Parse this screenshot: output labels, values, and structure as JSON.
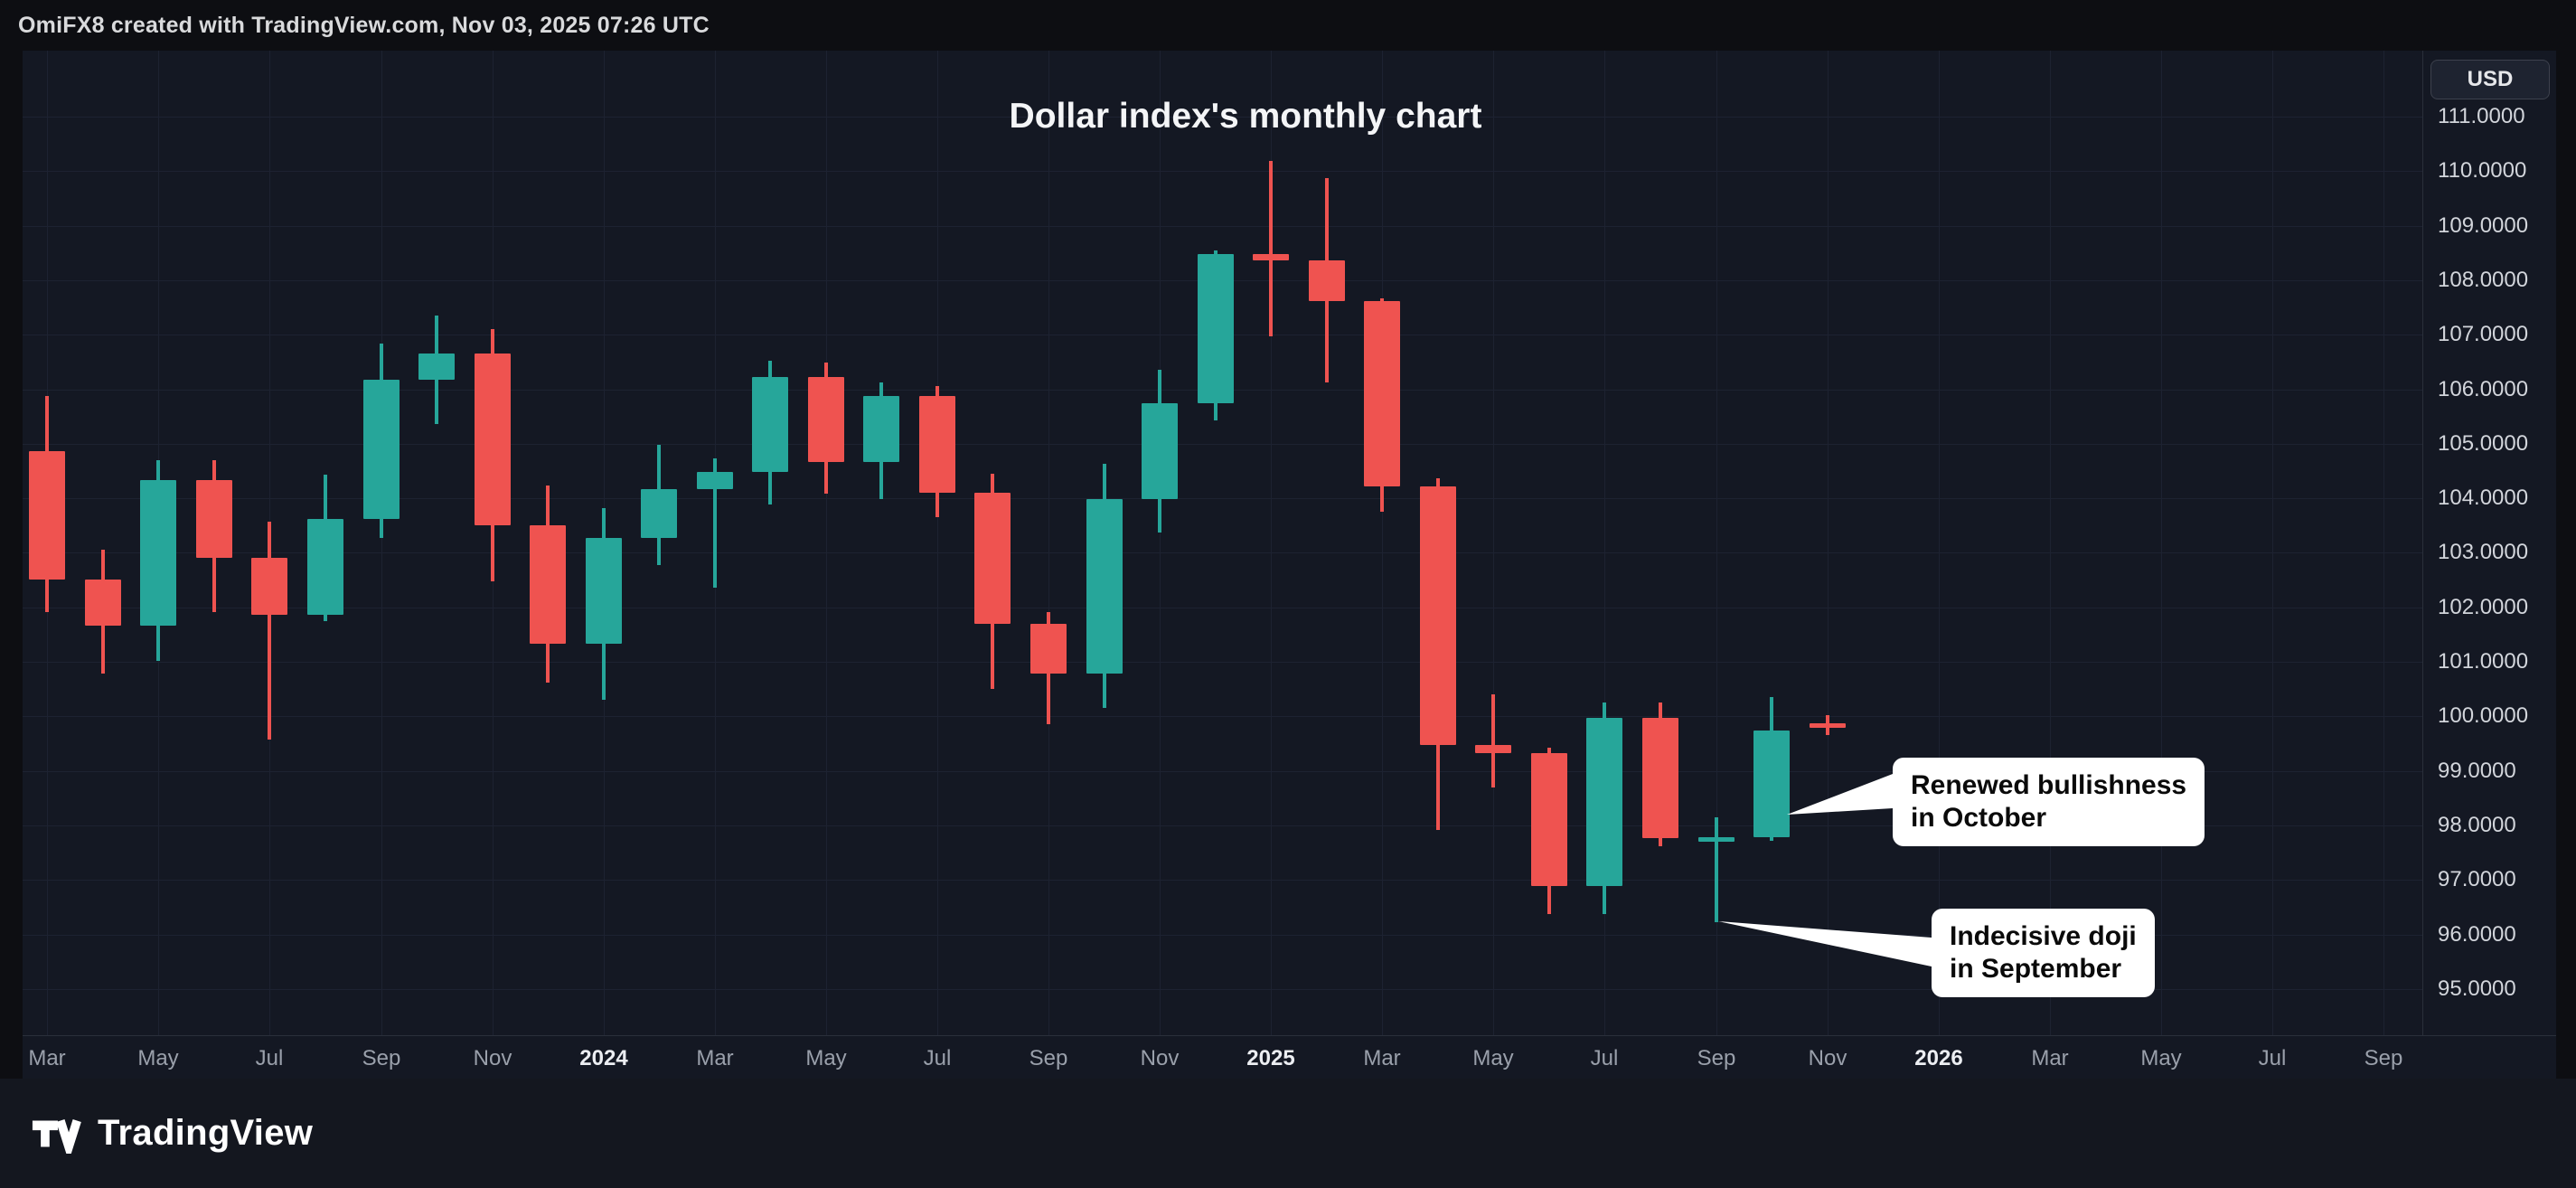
{
  "header": {
    "credit": "OmiFX8 created with TradingView.com, Nov 03, 2025 07:26 UTC"
  },
  "chart": {
    "title": "Dollar index's monthly chart",
    "currency_button": "USD"
  },
  "annotations": [
    {
      "line1": "Renewed bullishness",
      "line2": "in October"
    },
    {
      "line1": "Indecisive doji",
      "line2": "in September"
    }
  ],
  "footer": {
    "brand": "TradingView"
  },
  "chart_data": {
    "type": "candlestick",
    "title": "Dollar index's monthly chart",
    "currency": "USD",
    "timeframe": "monthly",
    "grid": true,
    "y_range": [
      94.15,
      112.2
    ],
    "colors": {
      "up": "#26a69a",
      "down": "#ef5350"
    },
    "y_ticks": [
      "111.0000",
      "110.0000",
      "109.0000",
      "108.0000",
      "107.0000",
      "106.0000",
      "105.0000",
      "104.0000",
      "103.0000",
      "102.0000",
      "101.0000",
      "100.0000",
      "99.0000",
      "98.0000",
      "97.0000",
      "96.0000",
      "95.0000"
    ],
    "x_ticks": [
      {
        "i": 0,
        "label": "Mar"
      },
      {
        "i": 2,
        "label": "May"
      },
      {
        "i": 4,
        "label": "Jul"
      },
      {
        "i": 6,
        "label": "Sep"
      },
      {
        "i": 8,
        "label": "Nov"
      },
      {
        "i": 10,
        "label": "2024",
        "bold": true
      },
      {
        "i": 12,
        "label": "Mar"
      },
      {
        "i": 14,
        "label": "May"
      },
      {
        "i": 16,
        "label": "Jul"
      },
      {
        "i": 18,
        "label": "Sep"
      },
      {
        "i": 20,
        "label": "Nov"
      },
      {
        "i": 22,
        "label": "2025",
        "bold": true
      },
      {
        "i": 24,
        "label": "Mar"
      },
      {
        "i": 26,
        "label": "May"
      },
      {
        "i": 28,
        "label": "Jul"
      },
      {
        "i": 30,
        "label": "Sep"
      },
      {
        "i": 32,
        "label": "Nov"
      },
      {
        "i": 34,
        "label": "2026",
        "bold": true
      },
      {
        "i": 36,
        "label": "Mar"
      },
      {
        "i": 38,
        "label": "May"
      },
      {
        "i": 40,
        "label": "Jul"
      },
      {
        "i": 42,
        "label": "Sep"
      }
    ],
    "candles": [
      {
        "t": "Mar 2023",
        "o": 104.87,
        "h": 105.88,
        "l": 101.92,
        "c": 102.51
      },
      {
        "t": "Apr 2023",
        "o": 102.51,
        "h": 103.06,
        "l": 100.79,
        "c": 101.66
      },
      {
        "t": "May 2023",
        "o": 101.66,
        "h": 104.7,
        "l": 101.01,
        "c": 104.33
      },
      {
        "t": "Jun 2023",
        "o": 104.33,
        "h": 104.7,
        "l": 101.92,
        "c": 102.91
      },
      {
        "t": "Jul 2023",
        "o": 102.91,
        "h": 103.57,
        "l": 99.58,
        "c": 101.86
      },
      {
        "t": "Aug 2023",
        "o": 101.86,
        "h": 104.44,
        "l": 101.74,
        "c": 103.62
      },
      {
        "t": "Sep 2023",
        "o": 103.62,
        "h": 106.84,
        "l": 103.27,
        "c": 106.17
      },
      {
        "t": "Oct 2023",
        "o": 106.17,
        "h": 107.35,
        "l": 105.36,
        "c": 106.66
      },
      {
        "t": "Nov 2023",
        "o": 106.66,
        "h": 107.11,
        "l": 102.47,
        "c": 103.5
      },
      {
        "t": "Dec 2023",
        "o": 103.5,
        "h": 104.23,
        "l": 100.62,
        "c": 101.33
      },
      {
        "t": "Jan 2024",
        "o": 101.33,
        "h": 103.82,
        "l": 100.31,
        "c": 103.27
      },
      {
        "t": "Feb 2024",
        "o": 103.27,
        "h": 104.98,
        "l": 102.78,
        "c": 104.16
      },
      {
        "t": "Mar 2024",
        "o": 104.16,
        "h": 104.73,
        "l": 102.36,
        "c": 104.49
      },
      {
        "t": "Apr 2024",
        "o": 104.49,
        "h": 106.52,
        "l": 103.89,
        "c": 106.22
      },
      {
        "t": "May 2024",
        "o": 106.22,
        "h": 106.49,
        "l": 104.08,
        "c": 104.67
      },
      {
        "t": "Jun 2024",
        "o": 104.67,
        "h": 106.13,
        "l": 103.99,
        "c": 105.87
      },
      {
        "t": "Jul 2024",
        "o": 105.87,
        "h": 106.05,
        "l": 103.65,
        "c": 104.1
      },
      {
        "t": "Aug 2024",
        "o": 104.1,
        "h": 104.45,
        "l": 100.51,
        "c": 101.7
      },
      {
        "t": "Sep 2024",
        "o": 101.7,
        "h": 101.92,
        "l": 99.86,
        "c": 100.78
      },
      {
        "t": "Oct 2024",
        "o": 100.78,
        "h": 104.63,
        "l": 100.16,
        "c": 103.98
      },
      {
        "t": "Nov 2024",
        "o": 103.98,
        "h": 106.35,
        "l": 103.37,
        "c": 105.74
      },
      {
        "t": "Dec 2024",
        "o": 105.74,
        "h": 108.54,
        "l": 105.42,
        "c": 108.48
      },
      {
        "t": "Jan 2025",
        "o": 108.48,
        "h": 110.18,
        "l": 106.97,
        "c": 108.37
      },
      {
        "t": "Feb 2025",
        "o": 108.37,
        "h": 109.88,
        "l": 106.13,
        "c": 107.61
      },
      {
        "t": "Mar 2025",
        "o": 107.61,
        "h": 107.66,
        "l": 103.75,
        "c": 104.21
      },
      {
        "t": "Apr 2025",
        "o": 104.21,
        "h": 104.37,
        "l": 97.92,
        "c": 99.47
      },
      {
        "t": "May 2025",
        "o": 99.47,
        "h": 100.4,
        "l": 98.69,
        "c": 99.33
      },
      {
        "t": "Jun 2025",
        "o": 99.33,
        "h": 99.42,
        "l": 96.37,
        "c": 96.88
      },
      {
        "t": "Jul 2025",
        "o": 96.88,
        "h": 100.26,
        "l": 96.38,
        "c": 99.97
      },
      {
        "t": "Aug 2025",
        "o": 99.97,
        "h": 100.25,
        "l": 97.62,
        "c": 97.77
      },
      {
        "t": "Sep 2025",
        "o": 97.77,
        "h": 98.15,
        "l": 96.22,
        "c": 97.78
      },
      {
        "t": "Oct 2025",
        "o": 97.78,
        "h": 100.36,
        "l": 97.71,
        "c": 99.74
      },
      {
        "t": "Nov 2025",
        "o": 99.88,
        "h": 100.02,
        "l": 99.66,
        "c": 99.8
      }
    ]
  }
}
